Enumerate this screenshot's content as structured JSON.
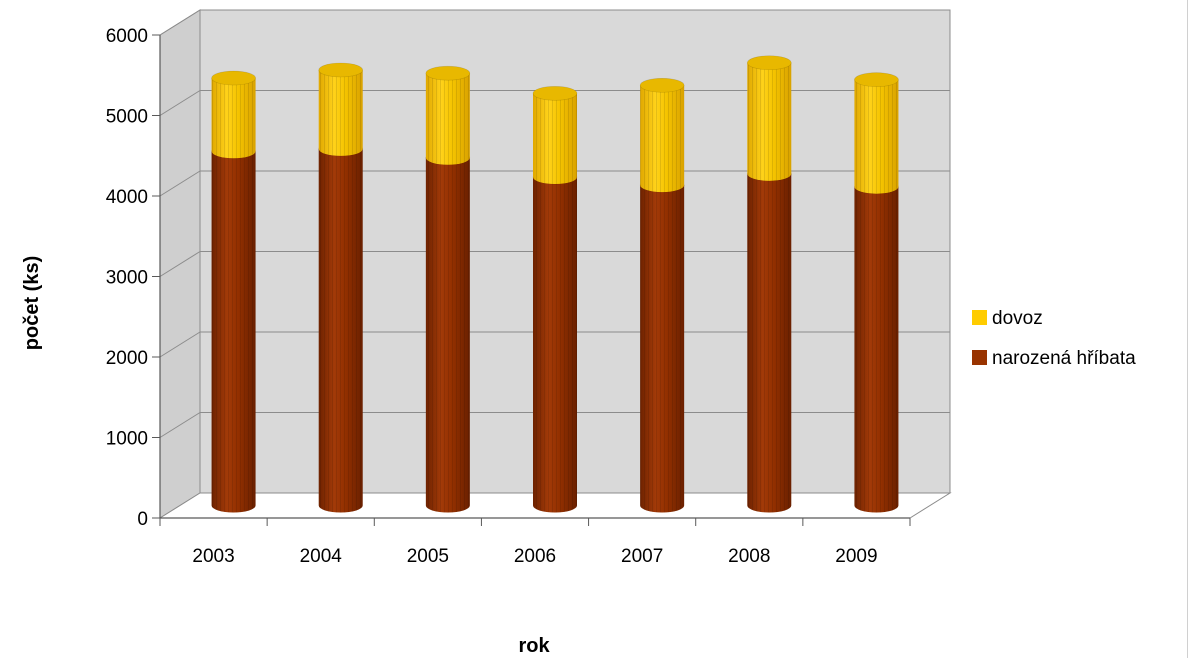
{
  "chart_data": {
    "type": "bar",
    "stacked": true,
    "style": "3d-cylinder",
    "categories": [
      "2003",
      "2004",
      "2005",
      "2006",
      "2007",
      "2008",
      "2009"
    ],
    "series": [
      {
        "name": "narozená hříbata",
        "color": "#993300",
        "values": [
          4400,
          4430,
          4320,
          4080,
          3980,
          4120,
          3960
        ]
      },
      {
        "name": "dovoz",
        "color": "#FFCC00",
        "values": [
          910,
          980,
          1050,
          1040,
          1240,
          1380,
          1330
        ]
      }
    ],
    "xlabel": "rok",
    "ylabel": "počet (ks)",
    "ylim": [
      0,
      6000
    ],
    "yticks": [
      0,
      1000,
      2000,
      3000,
      4000,
      5000,
      6000
    ],
    "grid": true,
    "legend": "right",
    "wall_color": "#D9D9D9"
  }
}
